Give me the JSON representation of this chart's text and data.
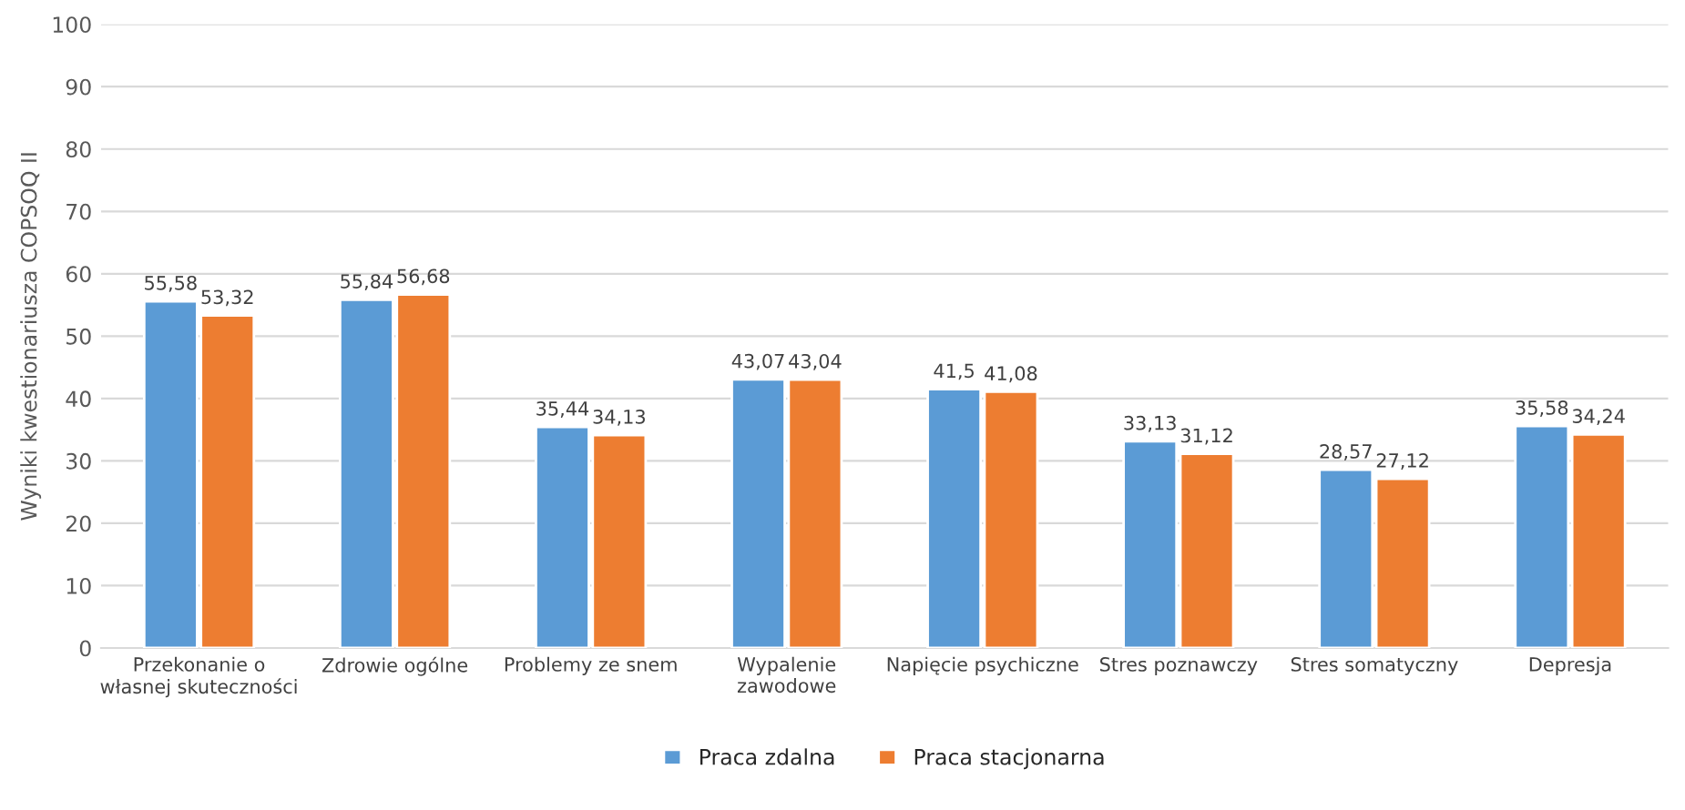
{
  "chart_data": {
    "type": "bar",
    "ylabel": "Wyniki kwestionariusza COPSOQ II",
    "categories": [
      "Przekonanie o\nwłasnej skuteczności",
      "Zdrowie ogólne",
      "Problemy ze snem",
      "Wypalenie\nzawodowe",
      "Napięcie psychiczne",
      "Stres poznawczy",
      "Stres somatyczny",
      "Depresja"
    ],
    "series": [
      {
        "name": "Praca zdalna",
        "color": "#5b9bd5",
        "values": [
          55.58,
          55.84,
          35.44,
          43.07,
          41.5,
          33.13,
          28.57,
          35.58
        ],
        "value_labels": [
          "55,58",
          "55,84",
          "35,44",
          "43,07",
          "41,5",
          "33,13",
          "28,57",
          "35,58"
        ]
      },
      {
        "name": "Praca stacjonarna",
        "color": "#ed7d31",
        "values": [
          53.32,
          56.68,
          34.13,
          43.04,
          41.08,
          31.12,
          27.12,
          34.24
        ],
        "value_labels": [
          "53,32",
          "56,68",
          "34,13",
          "43,04",
          "41,08",
          "31,12",
          "27,12",
          "34,24"
        ]
      }
    ],
    "ylim": [
      0,
      100
    ],
    "yticks": [
      0,
      10,
      20,
      30,
      40,
      50,
      60,
      70,
      80,
      90,
      100
    ],
    "grid": "y",
    "legend": "bottom"
  }
}
